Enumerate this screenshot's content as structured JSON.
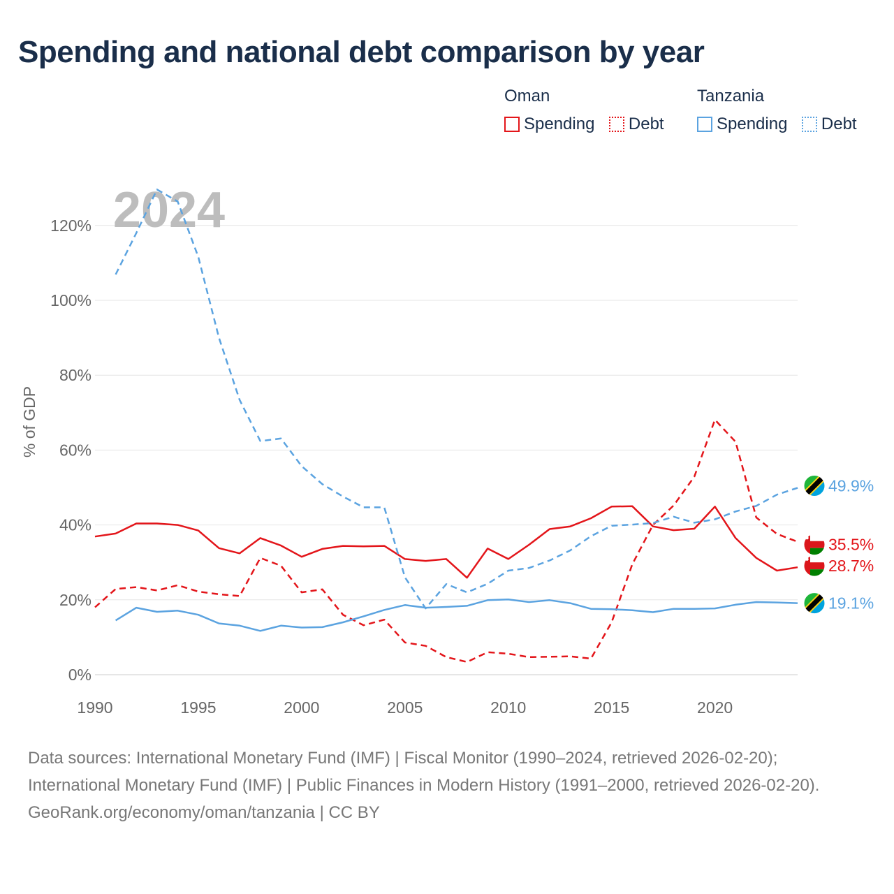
{
  "title": "Spending and national debt comparison by year",
  "legend": {
    "groups": [
      {
        "name": "Oman",
        "items": [
          {
            "label": "Spending",
            "style": "solid",
            "color": "#e3151a"
          },
          {
            "label": "Debt",
            "style": "dotted",
            "color": "#e3151a"
          }
        ]
      },
      {
        "name": "Tanzania",
        "items": [
          {
            "label": "Spending",
            "style": "solid",
            "color": "#5ba3e0"
          },
          {
            "label": "Debt",
            "style": "dotted",
            "color": "#5ba3e0"
          }
        ]
      }
    ]
  },
  "colors": {
    "oman": "#e3151a",
    "tanzania": "#5ba3e0",
    "grid": "#e6e6e6",
    "axis_text": "#666666",
    "year_label": "#bdbdbd",
    "title": "#1a2e4a"
  },
  "chart_data": {
    "type": "line",
    "title": "Spending and national debt comparison by year",
    "year_label": "2024",
    "ylabel": "% of GDP",
    "xlabel": "",
    "xlim": [
      1990,
      2024
    ],
    "ylim": [
      0,
      130
    ],
    "xticks": [
      1990,
      1995,
      2000,
      2005,
      2010,
      2015,
      2020
    ],
    "xtick_labels": [
      "1990",
      "1995",
      "2000",
      "2005",
      "2010",
      "2015",
      "2020"
    ],
    "yticks": [
      0,
      20,
      40,
      60,
      80,
      100,
      120
    ],
    "ytick_labels": [
      "0%",
      "20%",
      "40%",
      "60%",
      "80%",
      "100%",
      "120%"
    ],
    "grid": true,
    "legend_position": "top-right",
    "series": [
      {
        "id": "oman-spending",
        "name": "Oman Spending",
        "country": "oman",
        "dashed": false,
        "x": [
          1990,
          1991,
          1992,
          1993,
          1994,
          1995,
          1996,
          1997,
          1998,
          1999,
          2000,
          2001,
          2002,
          2003,
          2004,
          2005,
          2006,
          2007,
          2008,
          2009,
          2010,
          2011,
          2012,
          2013,
          2014,
          2015,
          2016,
          2017,
          2018,
          2019,
          2020,
          2021,
          2022,
          2023,
          2024
        ],
        "values": [
          36.9,
          37.7,
          40.4,
          40.4,
          40.0,
          38.5,
          33.8,
          32.4,
          36.5,
          34.5,
          31.5,
          33.6,
          34.4,
          34.3,
          34.4,
          30.9,
          30.4,
          30.9,
          25.9,
          33.7,
          30.9,
          34.7,
          38.9,
          39.6,
          41.8,
          44.9,
          45.0,
          39.6,
          38.6,
          39.0,
          44.9,
          36.5,
          31.2,
          27.8,
          28.7
        ],
        "end_label": "28.7%"
      },
      {
        "id": "oman-debt",
        "name": "Oman Debt",
        "country": "oman",
        "dashed": true,
        "x": [
          1990,
          1991,
          1992,
          1993,
          1994,
          1995,
          1996,
          1997,
          1998,
          1999,
          2000,
          2001,
          2002,
          2003,
          2004,
          2005,
          2006,
          2007,
          2008,
          2009,
          2010,
          2011,
          2012,
          2013,
          2014,
          2015,
          2016,
          2017,
          2018,
          2019,
          2020,
          2021,
          2022,
          2023,
          2024
        ],
        "values": [
          18.0,
          22.9,
          23.4,
          22.5,
          23.9,
          22.2,
          21.5,
          21.0,
          31.2,
          29.1,
          22.0,
          22.8,
          16.0,
          13.2,
          14.7,
          8.6,
          7.7,
          4.7,
          3.4,
          6.0,
          5.6,
          4.7,
          4.8,
          4.9,
          4.3,
          14.0,
          29.5,
          40.0,
          45.2,
          52.9,
          68.1,
          62.2,
          42.0,
          37.6,
          35.5
        ],
        "end_label": "35.5%"
      },
      {
        "id": "tanzania-spending",
        "name": "Tanzania Spending",
        "country": "tanzania",
        "dashed": false,
        "x": [
          1991,
          1992,
          1993,
          1994,
          1995,
          1996,
          1997,
          1998,
          1999,
          2000,
          2001,
          2002,
          2003,
          2004,
          2005,
          2006,
          2007,
          2008,
          2009,
          2010,
          2011,
          2012,
          2013,
          2014,
          2015,
          2016,
          2017,
          2018,
          2019,
          2020,
          2021,
          2022,
          2023,
          2024
        ],
        "values": [
          14.5,
          17.9,
          16.8,
          17.1,
          16.0,
          13.7,
          13.1,
          11.7,
          13.1,
          12.6,
          12.7,
          14.0,
          15.6,
          17.3,
          18.6,
          17.9,
          18.1,
          18.4,
          19.9,
          20.1,
          19.4,
          19.9,
          19.1,
          17.6,
          17.5,
          17.2,
          16.7,
          17.6,
          17.6,
          17.7,
          18.7,
          19.4,
          19.3,
          19.1
        ],
        "end_label": "19.1%"
      },
      {
        "id": "tanzania-debt",
        "name": "Tanzania Debt",
        "country": "tanzania",
        "dashed": true,
        "x": [
          1991,
          1992,
          1993,
          1994,
          1995,
          1996,
          1997,
          1998,
          1999,
          2000,
          2001,
          2002,
          2003,
          2004,
          2005,
          2006,
          2007,
          2008,
          2009,
          2010,
          2011,
          2012,
          2013,
          2014,
          2015,
          2016,
          2017,
          2018,
          2019,
          2020,
          2021,
          2022,
          2023,
          2024
        ],
        "values": [
          106.9,
          118.0,
          129.6,
          126.4,
          111.6,
          90.0,
          73.4,
          62.4,
          63.1,
          55.7,
          50.9,
          47.6,
          44.7,
          44.7,
          26.0,
          17.7,
          24.2,
          22.0,
          24.3,
          27.8,
          28.5,
          30.5,
          33.2,
          37.0,
          39.8,
          40.1,
          40.5,
          42.2,
          40.6,
          41.5,
          43.6,
          45.1,
          48.1,
          49.9
        ],
        "end_label": "49.9%"
      }
    ]
  },
  "footer": {
    "sources": "Data sources: International Monetary Fund (IMF) | Fiscal Monitor (1990–2024, retrieved 2026-02-20); International Monetary Fund (IMF) | Public Finances in Modern History (1991–2000, retrieved 2026-02-20).",
    "credit": "GeoRank.org/economy/oman/tanzania | CC BY"
  }
}
